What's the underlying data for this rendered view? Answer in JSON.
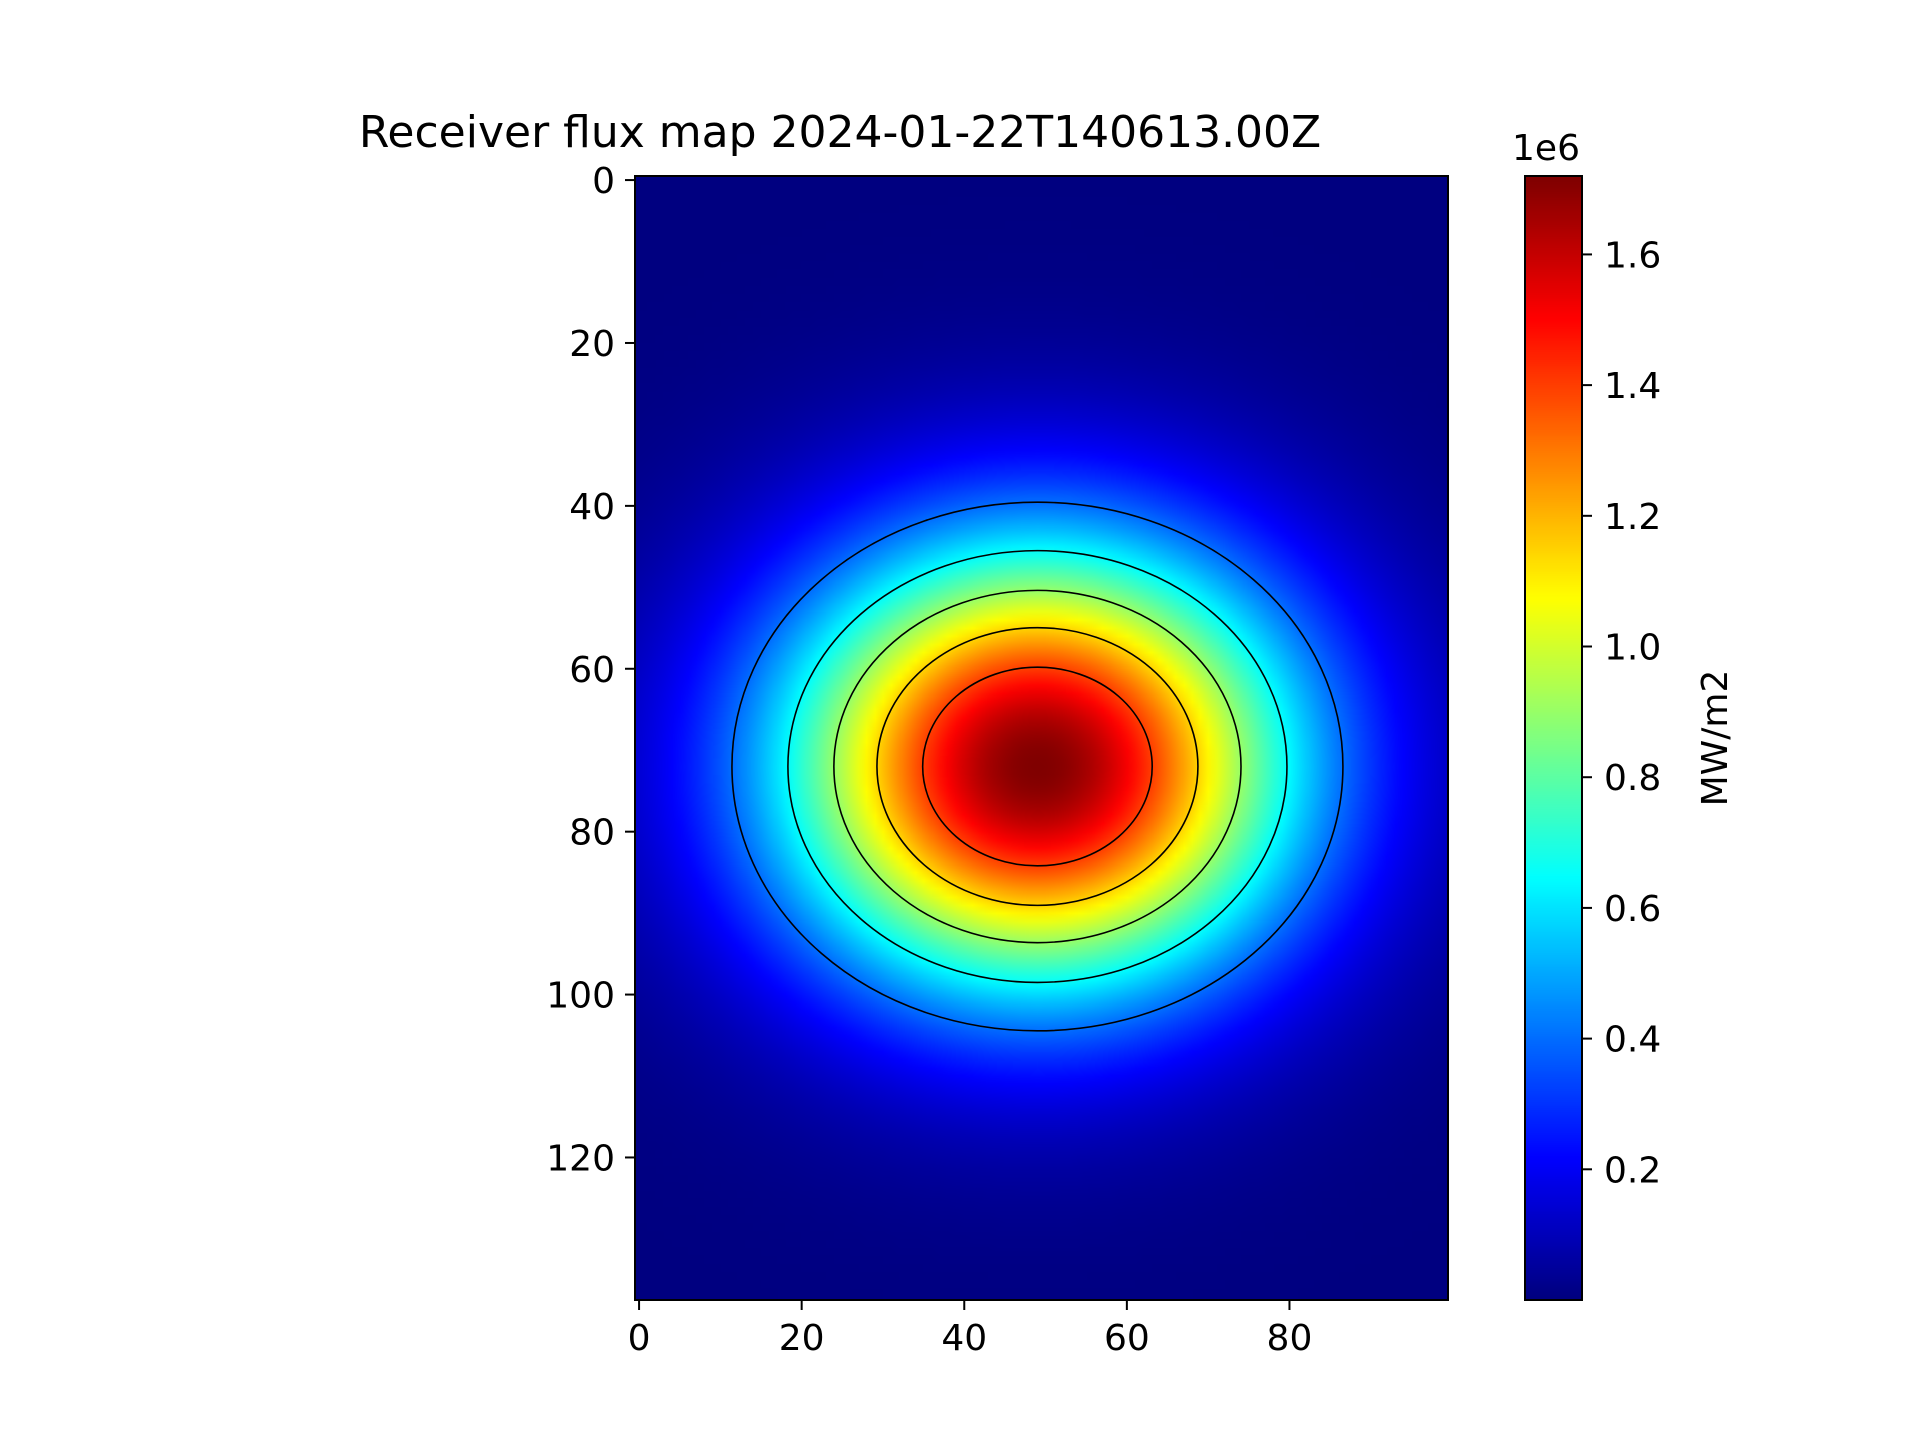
{
  "chart_data": {
    "type": "heatmap",
    "title": "Receiver flux map 2024-01-22T140613.00Z",
    "colormap": "jet",
    "grid_size": {
      "cols": 100,
      "rows": 138
    },
    "x_ticks": [
      0,
      20,
      40,
      60,
      80
    ],
    "y_ticks": [
      0,
      20,
      40,
      60,
      80,
      100,
      120
    ],
    "xlim": [
      -0.5,
      99.5
    ],
    "ylim": [
      137.5,
      -0.5
    ],
    "y_axis_inverted": true,
    "peak": {
      "x": 49,
      "y": 72,
      "value": 1720000
    },
    "spread": {
      "sigma_x": 22,
      "sigma_y": 19
    },
    "contour_levels": [
      400000,
      650000,
      900000,
      1150000,
      1400000
    ],
    "colorbar": {
      "label": "MW/m2",
      "offset_text": "1e6",
      "range": [
        0,
        1720000
      ],
      "ticks": [
        200000,
        400000,
        600000,
        800000,
        1000000,
        1200000,
        1400000,
        1600000
      ],
      "tick_labels": [
        "0.2",
        "0.4",
        "0.6",
        "0.8",
        "1.0",
        "1.2",
        "1.4",
        "1.6"
      ]
    }
  }
}
